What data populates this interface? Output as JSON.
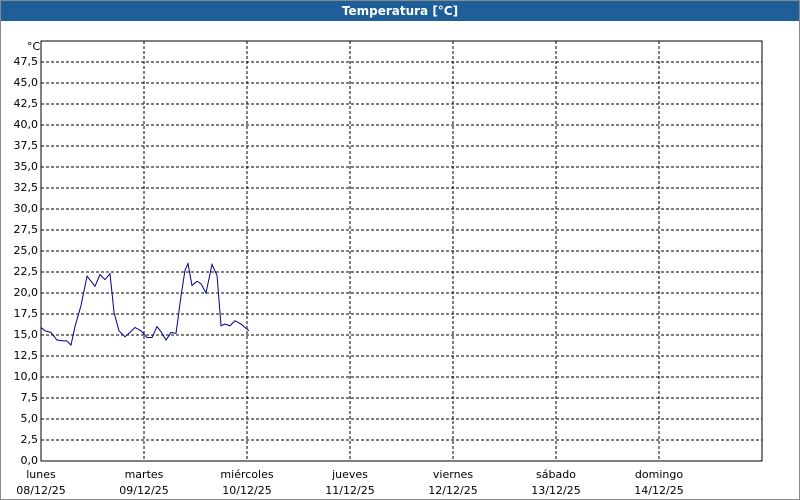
{
  "chart_data": {
    "type": "line",
    "title": "Temperatura [°C]",
    "y_label": "°C",
    "x": [
      0,
      0.039,
      0.097,
      0.155,
      0.214,
      0.252,
      0.291,
      0.33,
      0.388,
      0.447,
      0.524,
      0.573,
      0.621,
      0.67,
      0.709,
      0.757,
      0.816,
      0.854,
      0.913,
      0.971,
      1.029,
      1.078,
      1.126,
      1.165,
      1.214,
      1.262,
      1.311,
      1.359,
      1.398,
      1.427,
      1.466,
      1.515,
      1.553,
      1.602,
      1.66,
      1.709,
      1.748,
      1.786,
      1.835,
      1.883,
      1.942,
      2.019
    ],
    "series": [
      {
        "color": "#00008b",
        "values": [
          15.9,
          15.5,
          15.3,
          14.4,
          14.3,
          14.3,
          13.8,
          16.0,
          18.5,
          22.0,
          20.8,
          22.2,
          21.6,
          22.3,
          17.7,
          15.5,
          14.8,
          15.2,
          15.9,
          15.5,
          14.7,
          14.7,
          16.0,
          15.4,
          14.4,
          15.3,
          15.2,
          19.6,
          22.7,
          23.5,
          20.9,
          21.4,
          21.1,
          20.0,
          23.4,
          22.1,
          16.1,
          16.3,
          16.1,
          16.7,
          16.3,
          15.5
        ]
      }
    ],
    "xlim": [
      0,
      7
    ],
    "xticks": [
      {
        "value": 0,
        "label": "lunes"
      },
      {
        "value": 1,
        "label": "martes"
      },
      {
        "value": 2,
        "label": "miércoles"
      },
      {
        "value": 3,
        "label": "jueves"
      },
      {
        "value": 4,
        "label": "viernes"
      },
      {
        "value": 5,
        "label": "sábado"
      },
      {
        "value": 6,
        "label": "domingo"
      }
    ],
    "xtick_dates": [
      "08/12/25",
      "09/12/25",
      "10/12/25",
      "11/12/25",
      "12/12/25",
      "13/12/25",
      "14/12/25"
    ],
    "ylim": [
      0,
      50
    ],
    "yticks": [
      {
        "value": 0,
        "label": "0,0"
      },
      {
        "value": 2.5,
        "label": "2,5"
      },
      {
        "value": 5,
        "label": "5,0"
      },
      {
        "value": 7.5,
        "label": "7,5"
      },
      {
        "value": 10,
        "label": "10,0"
      },
      {
        "value": 12.5,
        "label": "12,5"
      },
      {
        "value": 15,
        "label": "15,0"
      },
      {
        "value": 17.5,
        "label": "17,5"
      },
      {
        "value": 20,
        "label": "20,0"
      },
      {
        "value": 22.5,
        "label": "22,5"
      },
      {
        "value": 25,
        "label": "25,0"
      },
      {
        "value": 27.5,
        "label": "27,5"
      },
      {
        "value": 30,
        "label": "30,0"
      },
      {
        "value": 32.5,
        "label": "32,5"
      },
      {
        "value": 35,
        "label": "35,0"
      },
      {
        "value": 37.5,
        "label": "37,5"
      },
      {
        "value": 40,
        "label": "40,0"
      },
      {
        "value": 42.5,
        "label": "42,5"
      },
      {
        "value": 45,
        "label": "45,0"
      },
      {
        "value": 47.5,
        "label": "47,5"
      }
    ],
    "grid": true
  }
}
